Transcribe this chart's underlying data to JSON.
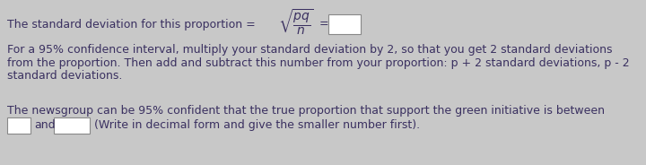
{
  "bg_color": "#c8c8c8",
  "text_color": "#3a3060",
  "box_color": "#ffffff",
  "box_edge_color": "#888888",
  "font_size": 9.0,
  "fig_width": 7.2,
  "fig_height": 1.84,
  "dpi": 100,
  "line1_prefix": "The standard deviation for this proportion = ",
  "para2_line1": "For a 95% confidence interval, multiply your standard deviation by 2, so that you get 2 standard deviations",
  "para2_line2": "from the proportion. Then add and subtract this number from your proportion: p + 2 standard deviations, p - 2",
  "para2_line3": "standard deviations.",
  "para3_line1": "The newsgroup can be 95% confident that the true proportion that support the green initiative is between",
  "para3_line2_mid": "and",
  "para3_line2_end": "(Write in decimal form and give the smaller number first)."
}
